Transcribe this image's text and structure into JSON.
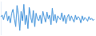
{
  "chart_data": {
    "type": "line",
    "categories": [
      null,
      null,
      null,
      null,
      null,
      null,
      null,
      null,
      null,
      null,
      null,
      null,
      null,
      null,
      null,
      null,
      null,
      null,
      null,
      null,
      null,
      null,
      null,
      null,
      null,
      null,
      null,
      null,
      null,
      null,
      null,
      null,
      null,
      null,
      null,
      null,
      null,
      null,
      null,
      null,
      null,
      null,
      null,
      null,
      null,
      null,
      null,
      null,
      null,
      null,
      null,
      null,
      null,
      null,
      null,
      null,
      null,
      null,
      null,
      null,
      null,
      null,
      null,
      null,
      null,
      null,
      null,
      null,
      null,
      null
    ],
    "values": [
      55,
      60,
      48,
      62,
      70,
      45,
      58,
      40,
      65,
      75,
      50,
      30,
      85,
      60,
      20,
      70,
      45,
      88,
      35,
      60,
      25,
      80,
      55,
      40,
      72,
      30,
      65,
      50,
      45,
      60,
      38,
      70,
      55,
      42,
      68,
      50,
      60,
      35,
      78,
      45,
      62,
      40,
      58,
      52,
      48,
      66,
      44,
      60,
      38,
      55,
      62,
      45,
      58,
      50,
      42,
      60,
      48,
      56,
      52,
      40,
      58,
      46,
      54,
      50,
      44,
      56,
      48,
      52,
      46,
      50
    ],
    "color": "#3b8fd9",
    "ylim": [
      10,
      95
    ],
    "grid": false,
    "tick_labels": false
  }
}
